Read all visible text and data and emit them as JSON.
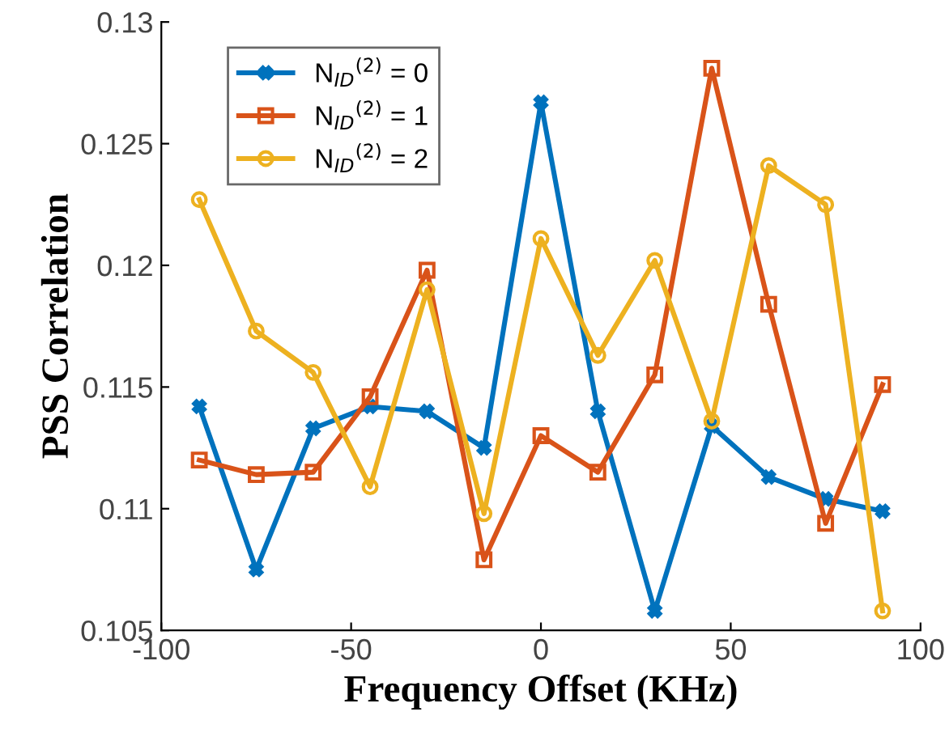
{
  "chart_data": {
    "type": "line",
    "xlabel": "Frequency Offset (KHz)",
    "ylabel": "PSS Correlation",
    "x": [
      -90,
      -75,
      -60,
      -45,
      -30,
      -15,
      0,
      15,
      30,
      45,
      60,
      75,
      90
    ],
    "series": [
      {
        "name": "N$_{ID}$$^{(2)}$ = 0",
        "color": "#0072bd",
        "marker": "cross",
        "values": [
          0.1142,
          0.1075,
          0.1133,
          0.1142,
          0.114,
          0.1125,
          0.1267,
          0.114,
          0.1058,
          0.1134,
          0.1113,
          0.1104,
          0.1099
        ]
      },
      {
        "name": "N$_{ID}$$^{(2)}$ = 1",
        "color": "#d95319",
        "marker": "square",
        "values": [
          0.112,
          0.1114,
          0.1115,
          0.1146,
          0.1198,
          0.1079,
          0.113,
          0.1115,
          0.1155,
          0.1281,
          0.1184,
          0.1094,
          0.1151
        ]
      },
      {
        "name": "N$_{ID}$$^{(2)}$ = 2",
        "color": "#edb120",
        "marker": "circle",
        "values": [
          0.1227,
          0.1173,
          0.1156,
          0.1109,
          0.119,
          0.1098,
          0.1211,
          0.1163,
          0.1202,
          0.1136,
          0.1241,
          0.1225,
          0.1058
        ]
      }
    ],
    "xlim": [
      -100,
      100
    ],
    "xticks": [
      -100,
      -50,
      0,
      50,
      100
    ],
    "ylim": [
      0.105,
      0.13
    ],
    "yticks": [
      {
        "value": 0.105,
        "label": "0.105"
      },
      {
        "value": 0.11,
        "label": "0.11"
      },
      0.115,
      {
        "value": 0.12,
        "label": "0.12"
      },
      0.125,
      {
        "value": 0.13,
        "label": "0.13"
      }
    ],
    "grid": false,
    "legend": "top left",
    "line_style": "solid"
  }
}
